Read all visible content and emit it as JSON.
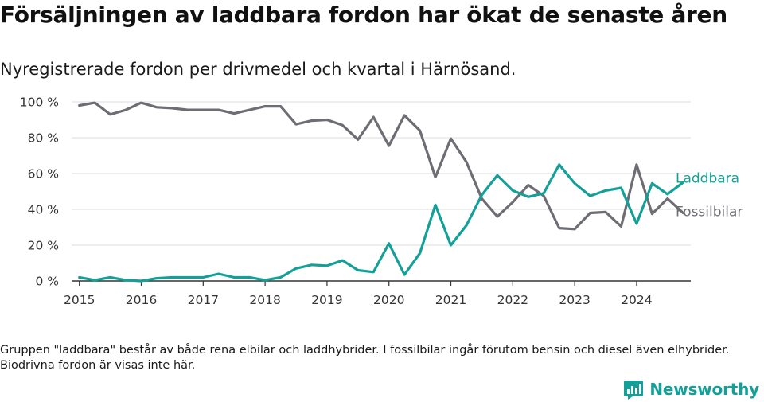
{
  "header": {
    "title": "Försäljningen av laddbara fordon har ökat de senaste åren",
    "subtitle": "Nyregistrerade fordon per drivmedel och kvartal i Härnösand."
  },
  "footer": {
    "note": "Gruppen \"laddbara\" består av både rena elbilar och laddhybrider. I fossilbilar ingår förutom bensin och diesel även elhybrider. Biodrivna fordon är visas inte här.",
    "brand": "Newsworthy",
    "brand_icon": "bar-chart-logo-icon"
  },
  "colors": {
    "laddbara": "#14A098",
    "fossilbilar": "#6E6D74",
    "axis": "#333333",
    "grid": "#dddddd"
  },
  "chart_data": {
    "type": "line",
    "title": "Försäljningen av laddbara fordon har ökat de senaste åren",
    "xlabel": "",
    "ylabel": "",
    "ylim": [
      0,
      100
    ],
    "yticks": [
      0,
      20,
      40,
      60,
      80,
      100
    ],
    "ytick_labels": [
      "0 %",
      "20 %",
      "40 %",
      "60 %",
      "80 %",
      "100 %"
    ],
    "xlim": [
      2014.875,
      2024.875
    ],
    "xticks": [
      2015,
      2016,
      2017,
      2018,
      2019,
      2020,
      2021,
      2022,
      2023,
      2024
    ],
    "xtick_labels": [
      "2015",
      "2016",
      "2017",
      "2018",
      "2019",
      "2020",
      "2021",
      "2022",
      "2023",
      "2024"
    ],
    "grid": "horizontal",
    "x": [
      2015.0,
      2015.25,
      2015.5,
      2015.75,
      2016.0,
      2016.25,
      2016.5,
      2016.75,
      2017.0,
      2017.25,
      2017.5,
      2017.75,
      2018.0,
      2018.25,
      2018.5,
      2018.75,
      2019.0,
      2019.25,
      2019.5,
      2019.75,
      2020.0,
      2020.25,
      2020.5,
      2020.75,
      2021.0,
      2021.25,
      2021.5,
      2021.75,
      2022.0,
      2022.25,
      2022.5,
      2022.75,
      2023.0,
      2023.25,
      2023.5,
      2023.75,
      2024.0,
      2024.25,
      2024.5,
      2024.75
    ],
    "series": [
      {
        "name": "Laddbara",
        "color": "#14A098",
        "values": [
          2,
          0.5,
          2,
          0.5,
          0,
          1.5,
          2,
          2,
          2,
          4,
          2,
          2,
          0.5,
          2,
          7,
          9,
          8.5,
          11.5,
          6,
          5,
          21,
          3.5,
          15.5,
          42.5,
          20,
          31,
          48,
          59,
          50.5,
          47,
          49,
          65,
          54.5,
          47.5,
          50.5,
          52,
          32,
          54.5,
          48.5,
          55
        ]
      },
      {
        "name": "Fossilbilar",
        "color": "#6E6D74",
        "values": [
          98,
          99.5,
          93,
          95.5,
          99.5,
          97,
          96.5,
          95.5,
          95.5,
          95.5,
          93.5,
          95.5,
          97.5,
          97.5,
          87.5,
          89.5,
          90,
          87,
          79,
          91.5,
          75.5,
          92.5,
          84,
          58,
          79.5,
          66.5,
          46,
          36,
          44,
          53.5,
          47.5,
          29.5,
          29,
          38,
          38.5,
          30.5,
          65,
          37.5,
          46,
          38
        ]
      }
    ]
  }
}
